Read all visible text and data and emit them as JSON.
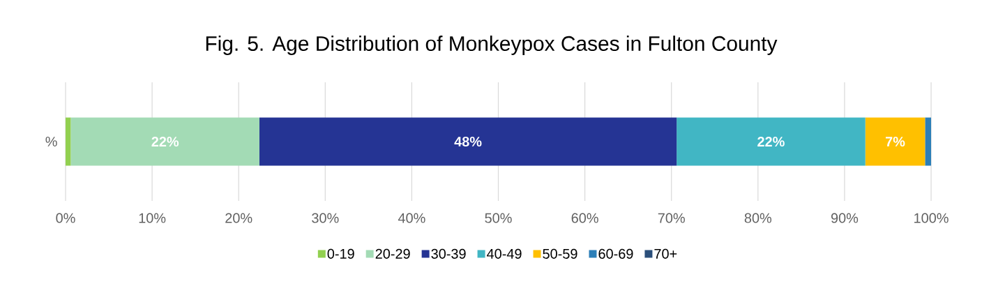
{
  "chart_data": {
    "type": "bar",
    "title": "Fig. 5. Age Distribution of Monkeypox Cases in Fulton County",
    "orientation": "horizontal",
    "stacked": true,
    "categories": [
      "%"
    ],
    "series": [
      {
        "name": "0-19",
        "color": "#92d050",
        "values": [
          0.6
        ]
      },
      {
        "name": "20-29",
        "color": "#a3dbb5",
        "values": [
          21.8
        ],
        "value_labels": [
          "22%"
        ]
      },
      {
        "name": "30-39",
        "color": "#253494",
        "values": [
          48.2
        ],
        "value_labels": [
          "48%"
        ]
      },
      {
        "name": "40-49",
        "color": "#41b6c4",
        "values": [
          21.8
        ],
        "value_labels": [
          "22%"
        ]
      },
      {
        "name": "50-59",
        "color": "#ffc000",
        "values": [
          6.9
        ],
        "value_labels": [
          "7%"
        ]
      },
      {
        "name": "60-69",
        "color": "#2c7fb8",
        "values": [
          0.7
        ]
      },
      {
        "name": "70+",
        "color": "#2b4f7a",
        "values": [
          0
        ]
      }
    ],
    "xlim": [
      0,
      100
    ],
    "xticks": [
      {
        "value": 0,
        "label": "0%"
      },
      {
        "value": 10,
        "label": "10%"
      },
      {
        "value": 20,
        "label": "20%"
      },
      {
        "value": 30,
        "label": "30%"
      },
      {
        "value": 40,
        "label": "40%"
      },
      {
        "value": 50,
        "label": "50%"
      },
      {
        "value": 60,
        "label": "60%"
      },
      {
        "value": 70,
        "label": "70%"
      },
      {
        "value": 80,
        "label": "80%"
      },
      {
        "value": 90,
        "label": "90%"
      },
      {
        "value": 100,
        "label": "100%"
      }
    ],
    "grid": "x",
    "legend": "bottom"
  }
}
